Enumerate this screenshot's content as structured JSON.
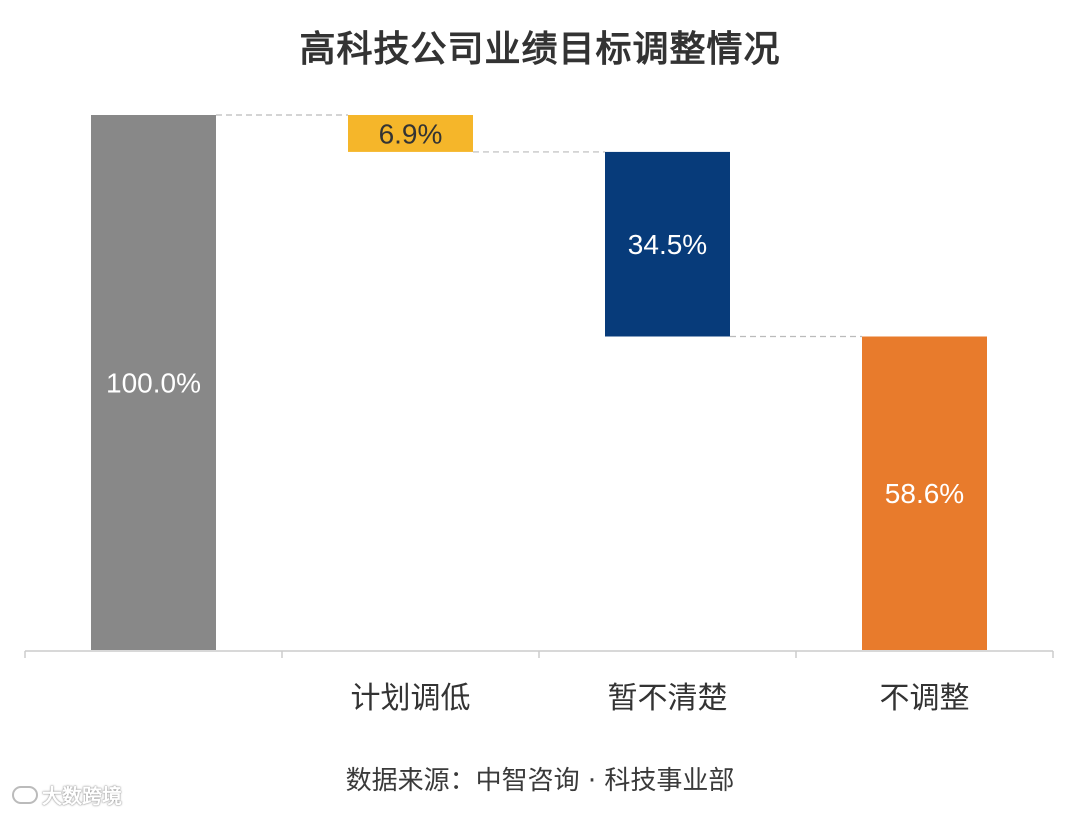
{
  "chart_data": {
    "type": "waterfall",
    "title": "高科技公司业绩目标调整情况",
    "source": "数据来源：中智咨询 · 科技事业部",
    "start": {
      "label": "",
      "value": 100.0,
      "value_label": "100.0%",
      "color": "#888888"
    },
    "steps": [
      {
        "category": "计划调低",
        "value": 6.9,
        "value_label": "6.9%",
        "color": "#F5B62A"
      },
      {
        "category": "暂不清楚",
        "value": 34.5,
        "value_label": "34.5%",
        "color": "#073B7A"
      },
      {
        "category": "不调整",
        "value": 58.6,
        "value_label": "58.6%",
        "color": "#E87B2C"
      }
    ],
    "ylim": [
      0,
      100
    ],
    "connectors": "dashed",
    "grid": false
  },
  "watermark": "大数跨境"
}
